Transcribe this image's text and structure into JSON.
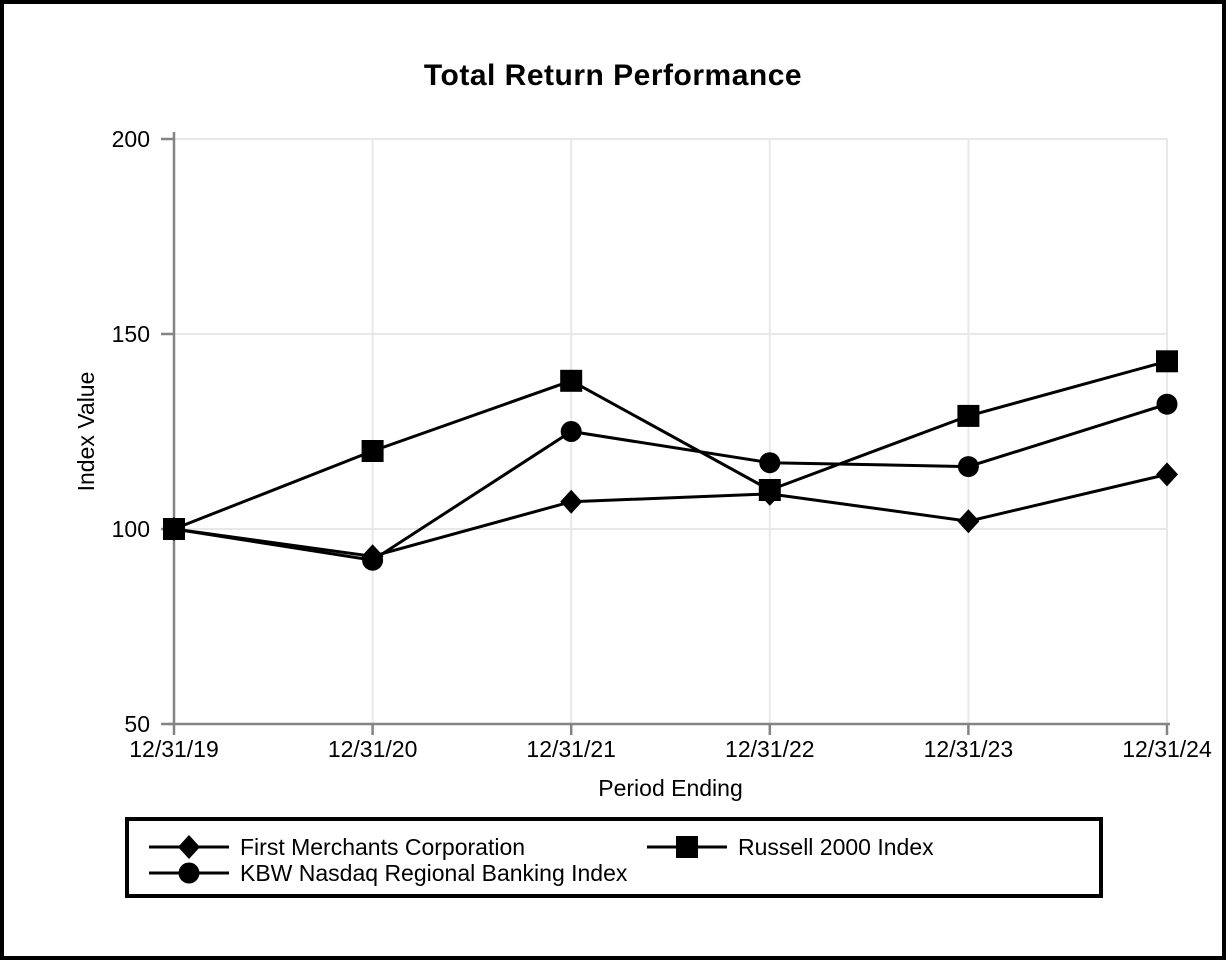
{
  "chart_data": {
    "type": "line",
    "title": "Total Return Performance",
    "xlabel": "Period Ending",
    "ylabel": "Index Value",
    "categories": [
      "12/31/19",
      "12/31/20",
      "12/31/21",
      "12/31/22",
      "12/31/23",
      "12/31/24"
    ],
    "series": [
      {
        "name": "First Merchants Corporation",
        "marker": "diamond",
        "values": [
          100,
          93,
          107,
          109,
          102,
          114
        ]
      },
      {
        "name": "Russell 2000 Index",
        "marker": "square",
        "values": [
          100,
          120,
          138,
          110,
          129,
          143
        ]
      },
      {
        "name": "KBW Nasdaq Regional Banking Index",
        "marker": "circle",
        "values": [
          100,
          92,
          125,
          117,
          116,
          132
        ]
      }
    ],
    "ylim": [
      50,
      200
    ],
    "yticks": [
      50,
      100,
      150,
      200
    ],
    "grid": true,
    "legend_position": "bottom",
    "colors": {
      "series": "#000000",
      "grid": "#e8e8e8",
      "axis": "#848484",
      "text": "#000000",
      "background": "#ffffff",
      "frame_border": "#000000"
    }
  }
}
